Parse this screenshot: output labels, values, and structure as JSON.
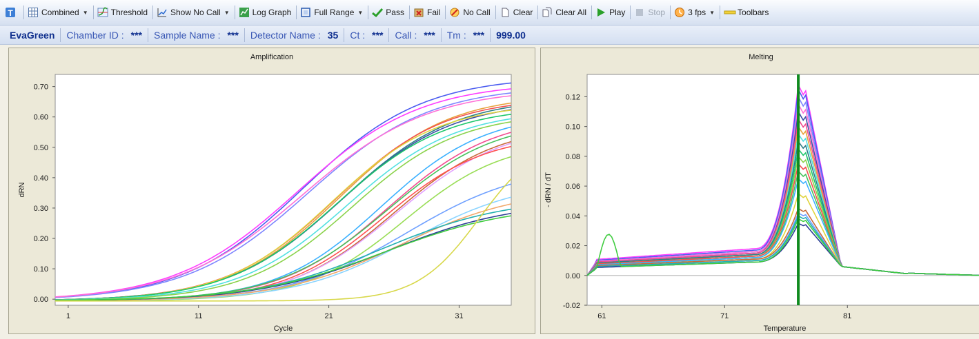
{
  "toolbar": {
    "items": [
      {
        "label": "",
        "icon": "text-tool-icon"
      },
      {
        "label": "Combined",
        "icon": "grid-icon",
        "dropdown": true
      },
      {
        "label": "Threshold",
        "icon": "threshold-icon"
      },
      {
        "label": "Show No Call",
        "icon": "chart-line-icon",
        "dropdown": true
      },
      {
        "label": "Log Graph",
        "icon": "log-graph-icon"
      },
      {
        "label": "Full Range",
        "icon": "full-range-icon",
        "dropdown": true
      },
      {
        "label": "Pass",
        "icon": "pass-icon"
      },
      {
        "label": "Fail",
        "icon": "fail-icon"
      },
      {
        "label": "No Call",
        "icon": "no-call-icon"
      },
      {
        "label": "Clear",
        "icon": "clear-icon"
      },
      {
        "label": "Clear All",
        "icon": "clear-all-icon"
      },
      {
        "label": "Play",
        "icon": "play-icon"
      },
      {
        "label": "Stop",
        "icon": "stop-icon",
        "disabled": true
      },
      {
        "label": "3 fps",
        "icon": "clock-icon",
        "dropdown": true
      },
      {
        "label": "Toolbars",
        "icon": "toolbars-icon"
      }
    ]
  },
  "infobar": {
    "dye": "EvaGreen",
    "fields": [
      {
        "label": "Chamber ID :",
        "value": "***"
      },
      {
        "label": "Sample Name :",
        "value": "***"
      },
      {
        "label": "Detector Name :",
        "value": "35"
      },
      {
        "label": "Ct :",
        "value": "***"
      },
      {
        "label": "Call :",
        "value": "***"
      },
      {
        "label": "Tm :",
        "value": "***"
      }
    ],
    "tm_value": "999.00"
  },
  "chart_data": [
    {
      "type": "line",
      "title": "Amplification",
      "xlabel": "Cycle",
      "ylabel": "dRN",
      "xlim": [
        0,
        35
      ],
      "ylim": [
        -0.02,
        0.74
      ],
      "xticks": [
        1,
        11,
        21,
        31
      ],
      "yticks": [
        0.0,
        0.1,
        0.2,
        0.3,
        0.4,
        0.5,
        0.6,
        0.7
      ],
      "ytick_labels": [
        "0.00",
        "0.10",
        "0.20",
        "0.30",
        "0.40",
        "0.50",
        "0.60",
        "0.70"
      ],
      "grid": false,
      "legend": false,
      "series": [
        {
          "color": "#4b5cf0",
          "plateau": 0.74,
          "midpoint": 19.0,
          "slope": 4.6
        },
        {
          "color": "#ff3cff",
          "plateau": 0.72,
          "midpoint": 18.6,
          "slope": 4.7
        },
        {
          "color": "#7e86ff",
          "plateau": 0.71,
          "midpoint": 19.4,
          "slope": 4.7
        },
        {
          "color": "#ff6fd6",
          "plateau": 0.7,
          "midpoint": 19.0,
          "slope": 4.8
        },
        {
          "color": "#e8a23c",
          "plateau": 0.68,
          "midpoint": 21.8,
          "slope": 4.2
        },
        {
          "color": "#f25050",
          "plateau": 0.67,
          "midpoint": 21.5,
          "slope": 4.2
        },
        {
          "color": "#2d7e86",
          "plateau": 0.67,
          "midpoint": 22.0,
          "slope": 4.3
        },
        {
          "color": "#3b4fa6",
          "plateau": 0.66,
          "midpoint": 21.9,
          "slope": 4.3
        },
        {
          "color": "#e0d43c",
          "plateau": 0.65,
          "midpoint": 21.2,
          "slope": 4.1
        },
        {
          "color": "#1cc76a",
          "plateau": 0.64,
          "midpoint": 21.6,
          "slope": 4.2
        },
        {
          "color": "#52e0e0",
          "plateau": 0.63,
          "midpoint": 22.4,
          "slope": 4.2
        },
        {
          "color": "#8ad24a",
          "plateau": 0.62,
          "midpoint": 22.8,
          "slope": 4.1
        },
        {
          "color": "#3ab0ff",
          "plateau": 0.62,
          "midpoint": 25.0,
          "slope": 4.0
        },
        {
          "color": "#f24b8f",
          "plateau": 0.61,
          "midpoint": 25.5,
          "slope": 4.1
        },
        {
          "color": "#46c25c",
          "plateau": 0.6,
          "midpoint": 25.5,
          "slope": 4.2
        },
        {
          "color": "#c86a3a",
          "plateau": 0.58,
          "midpoint": 26.0,
          "slope": 4.0
        },
        {
          "color": "#e2a0ff",
          "plateau": 0.58,
          "midpoint": 26.2,
          "slope": 4.1
        },
        {
          "color": "#ff5050",
          "plateau": 0.55,
          "midpoint": 25.2,
          "slope": 3.9
        },
        {
          "color": "#99dd55",
          "plateau": 0.53,
          "midpoint": 26.8,
          "slope": 3.8
        },
        {
          "color": "#6fa0ff",
          "plateau": 0.45,
          "midpoint": 27.0,
          "slope": 4.5
        },
        {
          "color": "#8bd4ff",
          "plateau": 0.4,
          "midpoint": 27.2,
          "slope": 4.4
        },
        {
          "color": "#f2a86a",
          "plateau": 0.37,
          "midpoint": 26.5,
          "slope": 4.6
        },
        {
          "color": "#22b0b0",
          "plateau": 0.34,
          "midpoint": 25.0,
          "slope": 4.8
        },
        {
          "color": "#2c3f96",
          "plateau": 0.33,
          "midpoint": 25.5,
          "slope": 4.9
        },
        {
          "color": "#40cc40",
          "plateau": 0.32,
          "midpoint": 25.2,
          "slope": 5.0
        },
        {
          "color": "#d8d84a",
          "plateau": 0.55,
          "midpoint": 32.6,
          "slope": 2.4
        }
      ]
    },
    {
      "type": "line",
      "title": "Melting",
      "xlabel": "Temperature",
      "ylabel": "- dRN / dT",
      "xlim": [
        59.8,
        92
      ],
      "ylim": [
        -0.02,
        0.135
      ],
      "xticks": [
        61,
        71,
        81
      ],
      "yticks": [
        -0.02,
        0.0,
        0.02,
        0.04,
        0.06,
        0.08,
        0.1,
        0.12
      ],
      "ytick_labels": [
        "-0.02",
        "0.00",
        "0.02",
        "0.04",
        "0.06",
        "0.08",
        "0.10",
        "0.12"
      ],
      "grid": false,
      "legend": false,
      "marker": {
        "x": 77.0,
        "color": "#0f8a1e"
      },
      "baseline": {
        "y": 0.0,
        "color": "#c8c8c8"
      },
      "series": [
        {
          "color": "#ff3cff",
          "peak": 0.128,
          "base": 0.018
        },
        {
          "color": "#4b5cf0",
          "peak": 0.125,
          "base": 0.017
        },
        {
          "color": "#7e86ff",
          "peak": 0.12,
          "base": 0.016
        },
        {
          "color": "#ff6fd6",
          "peak": 0.115,
          "base": 0.016
        },
        {
          "color": "#3b4fa6",
          "peak": 0.11,
          "base": 0.015
        },
        {
          "color": "#f24b8f",
          "peak": 0.105,
          "base": 0.015
        },
        {
          "color": "#e8a23c",
          "peak": 0.1,
          "base": 0.014
        },
        {
          "color": "#52e0e0",
          "peak": 0.095,
          "base": 0.014
        },
        {
          "color": "#2d7e86",
          "peak": 0.09,
          "base": 0.014
        },
        {
          "color": "#1cc76a",
          "peak": 0.085,
          "base": 0.013
        },
        {
          "color": "#8ad24a",
          "peak": 0.08,
          "base": 0.013
        },
        {
          "color": "#f25050",
          "peak": 0.075,
          "base": 0.013
        },
        {
          "color": "#46c25c",
          "peak": 0.07,
          "base": 0.012
        },
        {
          "color": "#3ab0ff",
          "peak": 0.065,
          "base": 0.012
        },
        {
          "color": "#e0d43c",
          "peak": 0.055,
          "base": 0.011
        },
        {
          "color": "#c86a3a",
          "peak": 0.045,
          "base": 0.011
        },
        {
          "color": "#6fa0ff",
          "peak": 0.042,
          "base": 0.01
        },
        {
          "color": "#22b0b0",
          "peak": 0.04,
          "base": 0.01
        },
        {
          "color": "#2c3f96",
          "peak": 0.035,
          "base": 0.009
        },
        {
          "color": "#40cc40",
          "peak": 0.038,
          "base": 0.009,
          "early_bump": 0.022
        }
      ]
    }
  ]
}
